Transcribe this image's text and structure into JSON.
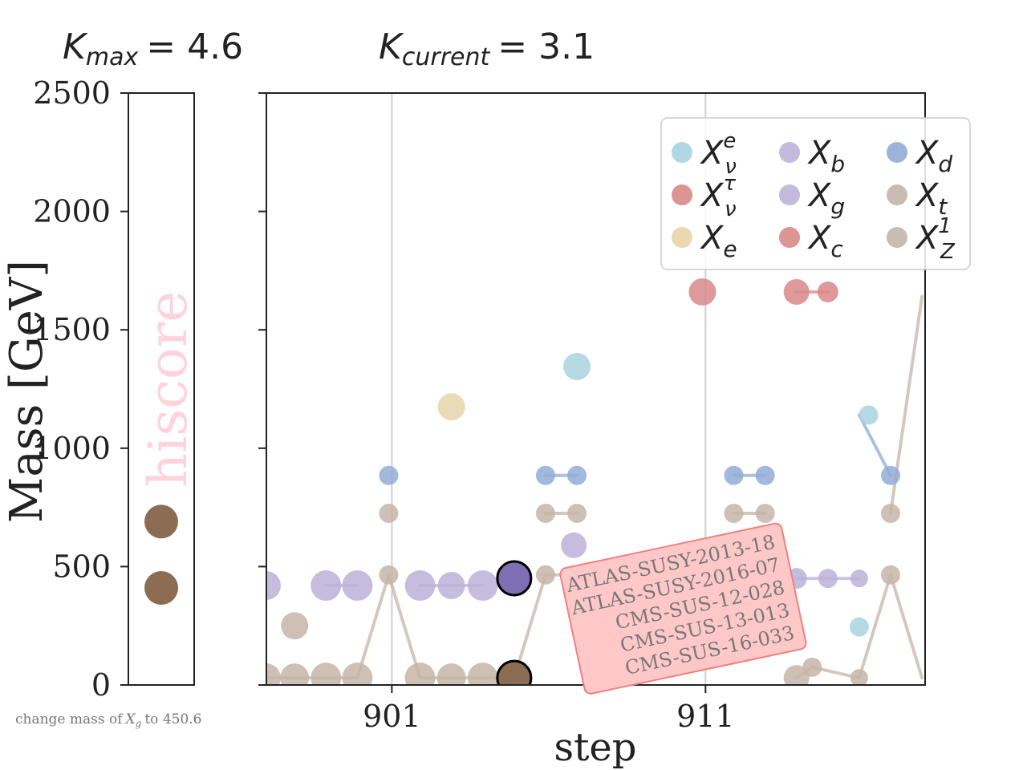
{
  "header": {
    "kmax": {
      "symbol": "K",
      "sub": "max",
      "value": "= 4.6"
    },
    "kcurrent": {
      "symbol": "K",
      "sub": "current",
      "value": "= 3.1"
    }
  },
  "side_panel": {
    "watermark": "hiscore",
    "ylim": [
      0,
      2500
    ],
    "yticks": [
      "0",
      "500",
      "1000",
      "1500",
      "2000",
      "2500"
    ],
    "ytick_values": [
      0,
      500,
      1000,
      1500,
      2000,
      2500
    ],
    "ylabel": "Mass [GeV]",
    "points": [
      {
        "mass": 690,
        "color": "#8c6d53"
      },
      {
        "mass": 410,
        "color": "#8c6d53"
      }
    ]
  },
  "caption": {
    "prefix": "change mass of",
    "symbol": "X",
    "sub": "g",
    "suffix": "to 450.6"
  },
  "annotation_box": {
    "lines": [
      "ATLAS-SUSY-2013-18",
      "ATLAS-SUSY-2016-07",
      "CMS-SUS-12-028",
      "CMS-SUS-13-013",
      "CMS-SUS-16-033"
    ],
    "fill": "#ffc8c8",
    "edge": "#f08080"
  },
  "chart_data": {
    "type": "scatter",
    "xlabel": "step",
    "ylabel": "",
    "xlim": [
      897,
      918
    ],
    "ylim": [
      0,
      2500
    ],
    "xticks": [
      901,
      911
    ],
    "xtick_labels": [
      "901",
      "911"
    ],
    "grid_x": [
      901,
      911
    ],
    "legend": {
      "placement": "upper right",
      "columns": 3
    },
    "series": [
      {
        "name": "X_ν^e",
        "base": "X",
        "sub": "ν",
        "sup": "e",
        "color": "#a8d3df",
        "points": [
          [
            906.9,
            1345,
            17
          ],
          [
            916.2,
            1140,
            12
          ],
          [
            915.9,
            245,
            12
          ]
        ],
        "lines": []
      },
      {
        "name": "X_ν^τ",
        "base": "X",
        "sub": "ν",
        "sup": "τ",
        "color": "#d88888",
        "points": [],
        "lines": []
      },
      {
        "name": "X_e",
        "base": "X",
        "sub": "e",
        "sup": "",
        "color": "#e5d5a8",
        "points": [
          [
            902.9,
            1175,
            17
          ]
        ],
        "lines": []
      },
      {
        "name": "X_b",
        "base": "X",
        "sub": "b",
        "sup": "",
        "color": "#bcb2d8",
        "points": [
          [
            897,
            420,
            18
          ],
          [
            898.9,
            420,
            19
          ],
          [
            899.9,
            420,
            19
          ],
          [
            901.9,
            420,
            19
          ],
          [
            902.9,
            420,
            17
          ],
          [
            903.9,
            420,
            19
          ],
          [
            906.8,
            590,
            16
          ],
          [
            912.9,
            450,
            14
          ],
          [
            913.9,
            450,
            13
          ],
          [
            914.9,
            450,
            12
          ],
          [
            915.9,
            450,
            11
          ]
        ],
        "lines": [
          [
            [
              898.9,
              420
            ],
            [
              899.9,
              420
            ]
          ],
          [
            [
              901.9,
              420
            ],
            [
              903.9,
              420
            ]
          ],
          [
            [
              913.9,
              450
            ],
            [
              915.9,
              450
            ]
          ]
        ]
      },
      {
        "name": "X_g",
        "base": "X",
        "sub": "g",
        "sup": "",
        "color": "#bcb2d8",
        "points": [
          [
            904.9,
            450.6,
            21
          ]
        ],
        "lines": []
      },
      {
        "name": "X_c",
        "base": "X",
        "sub": "c",
        "sup": "",
        "color": "#d88888",
        "points": [
          [
            910.9,
            1660,
            17
          ],
          [
            913.9,
            1660,
            16
          ],
          [
            914.9,
            1660,
            13
          ]
        ],
        "lines": [
          [
            [
              913.9,
              1660
            ],
            [
              914.9,
              1660
            ]
          ]
        ]
      },
      {
        "name": "X_d",
        "base": "X",
        "sub": "d",
        "sup": "",
        "color": "#92abd6",
        "points": [
          [
            900.9,
            885,
            12
          ],
          [
            905.9,
            885,
            12
          ],
          [
            906.9,
            885,
            12
          ],
          [
            911.9,
            885,
            12
          ],
          [
            912.9,
            885,
            12
          ],
          [
            916.9,
            885,
            12
          ]
        ],
        "lines": [
          [
            [
              905.9,
              885
            ],
            [
              906.9,
              885
            ]
          ],
          [
            [
              911.9,
              885
            ],
            [
              912.9,
              885
            ]
          ],
          [
            [
              915.9,
              1140
            ],
            [
              916.9,
              885
            ]
          ]
        ]
      },
      {
        "name": "X_t",
        "base": "X",
        "sub": "t",
        "sup": "",
        "color": "#c5b5a8",
        "points": [
          [
            897.9,
            250,
            17
          ],
          [
            900.9,
            725,
            12
          ],
          [
            905.9,
            725,
            12
          ],
          [
            906.9,
            725,
            12
          ],
          [
            911.9,
            725,
            12
          ],
          [
            912.9,
            725,
            12
          ],
          [
            916.9,
            725,
            12
          ]
        ],
        "lines": [
          [
            [
              905.9,
              725
            ],
            [
              906.9,
              725
            ]
          ],
          [
            [
              911.9,
              725
            ],
            [
              912.9,
              725
            ]
          ],
          [
            [
              916.9,
              725
            ],
            [
              917.9,
              1640
            ]
          ]
        ]
      },
      {
        "name": "X_Z^1",
        "base": "X",
        "sub": "Z",
        "sup": "1",
        "color": "#c5b5a8",
        "points": [
          [
            897,
            30,
            18
          ],
          [
            897.9,
            30,
            18
          ],
          [
            898.9,
            30,
            19
          ],
          [
            899.9,
            30,
            19
          ],
          [
            900.9,
            465,
            12
          ],
          [
            901.9,
            30,
            19
          ],
          [
            902.9,
            30,
            18
          ],
          [
            903.9,
            30,
            19
          ],
          [
            904.9,
            30,
            21
          ],
          [
            905.9,
            465,
            12
          ],
          [
            913.9,
            30,
            16
          ],
          [
            914.4,
            75,
            12
          ],
          [
            915.9,
            30,
            11
          ],
          [
            916.9,
            465,
            12
          ]
        ],
        "lines": [
          [
            [
              897,
              30
            ],
            [
              899.9,
              30
            ],
            [
              900.9,
              465
            ],
            [
              901.9,
              30
            ],
            [
              904.9,
              30
            ],
            [
              905.9,
              465
            ],
            [
              906.6,
              465
            ]
          ],
          [
            [
              913.9,
              30
            ],
            [
              914.4,
              75
            ],
            [
              915.9,
              30
            ],
            [
              916.9,
              465
            ],
            [
              917.9,
              30
            ]
          ]
        ]
      }
    ],
    "highlights": [
      {
        "label": "X_g",
        "x": 904.9,
        "y": 450.6,
        "color": "#7e6fb4",
        "edge": "#000000",
        "r": 21
      },
      {
        "label": "X_Z^1",
        "x": 904.9,
        "y": 30,
        "color": "#8c6d53",
        "edge": "#000000",
        "r": 21
      }
    ]
  }
}
